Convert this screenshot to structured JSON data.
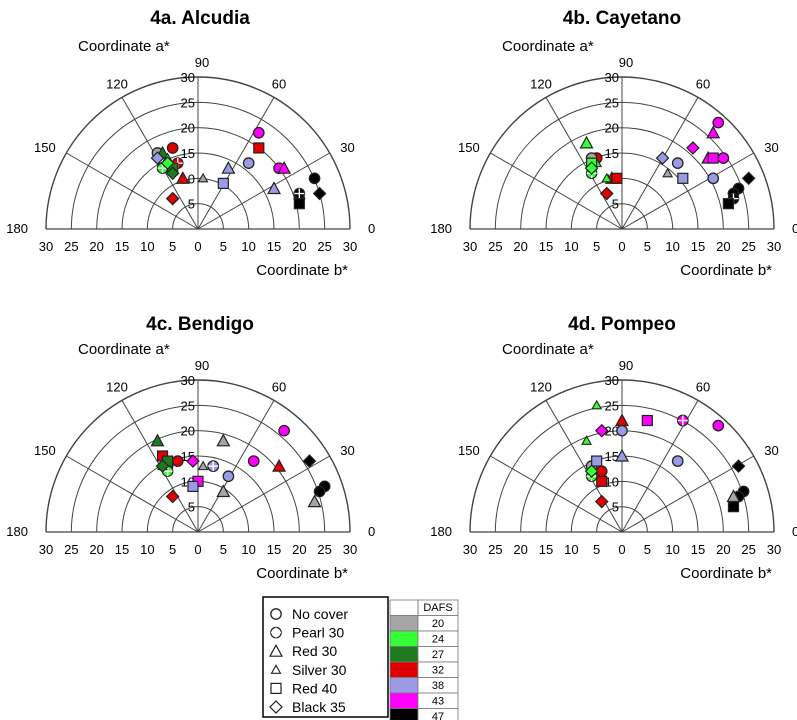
{
  "chart_data": [
    {
      "type": "scatter",
      "coordinate_system": "polar-quarter",
      "title": "4a. Alcudia",
      "ylabel": "Coordinate a*",
      "xlabel": "Coordinate b*",
      "radial_ticks": [
        "30",
        "25",
        "20",
        "15",
        "10",
        "5",
        "0",
        "5",
        "10",
        "15",
        "20",
        "25",
        "30"
      ],
      "vertical_ticks": [
        "30",
        "25",
        "20",
        "15",
        "10",
        "5"
      ],
      "angle_ticks": [
        "180",
        "150",
        "120",
        "90",
        "60",
        "30",
        "0"
      ],
      "points": [
        {
          "x": 23,
          "y": 10,
          "cover": "No cover",
          "dafs": "47"
        },
        {
          "x": 20,
          "y": 6,
          "cover": "No cover",
          "dafs": "47"
        },
        {
          "x": 16,
          "y": 12,
          "cover": "No cover",
          "dafs": "43"
        },
        {
          "x": 12,
          "y": 19,
          "cover": "No cover",
          "dafs": "43"
        },
        {
          "x": 10,
          "y": 13,
          "cover": "No cover",
          "dafs": "38"
        },
        {
          "x": -5,
          "y": 16,
          "cover": "No cover",
          "dafs": "32"
        },
        {
          "x": -8,
          "y": 15,
          "cover": "No cover",
          "dafs": "20"
        },
        {
          "x": 20,
          "y": 7,
          "cover": "Pearl 30",
          "dafs": "47"
        },
        {
          "x": -4,
          "y": 13,
          "cover": "Pearl 30",
          "dafs": "32"
        },
        {
          "x": -7,
          "y": 12,
          "cover": "Pearl 30",
          "dafs": "24"
        },
        {
          "x": 17,
          "y": 12,
          "cover": "Red 30",
          "dafs": "43"
        },
        {
          "x": 15,
          "y": 8,
          "cover": "Red 30",
          "dafs": "38"
        },
        {
          "x": 6,
          "y": 12,
          "cover": "Red 30",
          "dafs": "38"
        },
        {
          "x": -3,
          "y": 10,
          "cover": "Red 30",
          "dafs": "32"
        },
        {
          "x": -7,
          "y": 15,
          "cover": "Red 30",
          "dafs": "27"
        },
        {
          "x": 1,
          "y": 10,
          "cover": "Silver 30",
          "dafs": "20"
        },
        {
          "x": -6,
          "y": 14,
          "cover": "Silver 30",
          "dafs": "24"
        },
        {
          "x": 20,
          "y": 5,
          "cover": "Red 40",
          "dafs": "47"
        },
        {
          "x": 12,
          "y": 16,
          "cover": "Red 40",
          "dafs": "32"
        },
        {
          "x": 5,
          "y": 9,
          "cover": "Red 40",
          "dafs": "38"
        },
        {
          "x": -5,
          "y": 12,
          "cover": "Red 40",
          "dafs": "27"
        },
        {
          "x": 24,
          "y": 7,
          "cover": "Black 35",
          "dafs": "47"
        },
        {
          "x": -5,
          "y": 6,
          "cover": "Black 35",
          "dafs": "32"
        },
        {
          "x": -5,
          "y": 11,
          "cover": "Black 35",
          "dafs": "27"
        },
        {
          "x": -6,
          "y": 13,
          "cover": "Black 35",
          "dafs": "24"
        },
        {
          "x": -8,
          "y": 14,
          "cover": "Black 35",
          "dafs": "38"
        }
      ]
    },
    {
      "type": "scatter",
      "coordinate_system": "polar-quarter",
      "title": "4b. Cayetano",
      "ylabel": "Coordinate a*",
      "xlabel": "Coordinate b*",
      "radial_ticks": [
        "30",
        "25",
        "20",
        "15",
        "10",
        "5",
        "0",
        "5",
        "10",
        "15",
        "20",
        "25",
        "30"
      ],
      "vertical_ticks": [
        "30",
        "25",
        "20",
        "15",
        "10",
        "5"
      ],
      "angle_ticks": [
        "180",
        "150",
        "120",
        "90",
        "60",
        "30",
        "0"
      ],
      "points": [
        {
          "x": 23,
          "y": 8,
          "cover": "No cover",
          "dafs": "47"
        },
        {
          "x": 22,
          "y": 7,
          "cover": "No cover",
          "dafs": "47"
        },
        {
          "x": 18,
          "y": 10,
          "cover": "No cover",
          "dafs": "38"
        },
        {
          "x": 20,
          "y": 14,
          "cover": "No cover",
          "dafs": "43"
        },
        {
          "x": 19,
          "y": 21,
          "cover": "No cover",
          "dafs": "43"
        },
        {
          "x": 11,
          "y": 13,
          "cover": "No cover",
          "dafs": "38"
        },
        {
          "x": -5,
          "y": 14,
          "cover": "No cover",
          "dafs": "32"
        },
        {
          "x": -6,
          "y": 14,
          "cover": "No cover",
          "dafs": "20"
        },
        {
          "x": 22,
          "y": 6,
          "cover": "Pearl 30",
          "dafs": "47"
        },
        {
          "x": -6,
          "y": 11,
          "cover": "Pearl 30",
          "dafs": "24"
        },
        {
          "x": 18,
          "y": 19,
          "cover": "Red 30",
          "dafs": "43"
        },
        {
          "x": 17,
          "y": 14,
          "cover": "Red 30",
          "dafs": "43"
        },
        {
          "x": -2,
          "y": 10,
          "cover": "Red 30",
          "dafs": "32"
        },
        {
          "x": -7,
          "y": 17,
          "cover": "Red 30",
          "dafs": "24"
        },
        {
          "x": 9,
          "y": 11,
          "cover": "Silver 30",
          "dafs": "20"
        },
        {
          "x": -5,
          "y": 13,
          "cover": "Silver 30",
          "dafs": "24"
        },
        {
          "x": -3,
          "y": 10,
          "cover": "Silver 30",
          "dafs": "24"
        },
        {
          "x": 21,
          "y": 5,
          "cover": "Red 40",
          "dafs": "47"
        },
        {
          "x": 18,
          "y": 14,
          "cover": "Red 40",
          "dafs": "43"
        },
        {
          "x": 12,
          "y": 10,
          "cover": "Red 40",
          "dafs": "38"
        },
        {
          "x": -6,
          "y": 13,
          "cover": "Red 40",
          "dafs": "24"
        },
        {
          "x": -1,
          "y": 10,
          "cover": "Red 40",
          "dafs": "32"
        },
        {
          "x": 25,
          "y": 10,
          "cover": "Black 35",
          "dafs": "47"
        },
        {
          "x": 14,
          "y": 16,
          "cover": "Black 35",
          "dafs": "43"
        },
        {
          "x": 8,
          "y": 14,
          "cover": "Black 35",
          "dafs": "38"
        },
        {
          "x": -3,
          "y": 7,
          "cover": "Black 35",
          "dafs": "32"
        },
        {
          "x": -6,
          "y": 12,
          "cover": "Black 35",
          "dafs": "24"
        }
      ]
    },
    {
      "type": "scatter",
      "coordinate_system": "polar-quarter",
      "title": "4c. Bendigo",
      "ylabel": "Coordinate a*",
      "xlabel": "Coordinate b*",
      "radial_ticks": [
        "30",
        "25",
        "20",
        "15",
        "10",
        "5",
        "0",
        "5",
        "10",
        "15",
        "20",
        "25",
        "30"
      ],
      "vertical_ticks": [
        "30",
        "25",
        "20",
        "15",
        "10",
        "5"
      ],
      "angle_ticks": [
        "180",
        "150",
        "120",
        "90",
        "60",
        "30",
        "0"
      ],
      "points": [
        {
          "x": 25,
          "y": 9,
          "cover": "No cover",
          "dafs": "47"
        },
        {
          "x": 24,
          "y": 8,
          "cover": "No cover",
          "dafs": "47"
        },
        {
          "x": 17,
          "y": 20,
          "cover": "No cover",
          "dafs": "43"
        },
        {
          "x": 11,
          "y": 14,
          "cover": "No cover",
          "dafs": "43"
        },
        {
          "x": 3,
          "y": 13,
          "cover": "No cover",
          "dafs": "38"
        },
        {
          "x": 6,
          "y": 11,
          "cover": "No cover",
          "dafs": "38"
        },
        {
          "x": -6,
          "y": 13,
          "cover": "No cover",
          "dafs": "20"
        },
        {
          "x": -4,
          "y": 14,
          "cover": "No cover",
          "dafs": "32"
        },
        {
          "x": 3,
          "y": 13,
          "cover": "Pearl 30",
          "dafs": "38"
        },
        {
          "x": -6,
          "y": 12,
          "cover": "Pearl 30",
          "dafs": "24"
        },
        {
          "x": 23,
          "y": 6,
          "cover": "Red 30",
          "dafs": "20"
        },
        {
          "x": 16,
          "y": 13,
          "cover": "Red 30",
          "dafs": "32"
        },
        {
          "x": 5,
          "y": 18,
          "cover": "Red 30",
          "dafs": "20"
        },
        {
          "x": 5,
          "y": 8,
          "cover": "Red 30",
          "dafs": "20"
        },
        {
          "x": -8,
          "y": 18,
          "cover": "Red 30",
          "dafs": "27"
        },
        {
          "x": 1,
          "y": 13,
          "cover": "Silver 30",
          "dafs": "20"
        },
        {
          "x": -7,
          "y": 13,
          "cover": "Silver 30",
          "dafs": "24"
        },
        {
          "x": -7,
          "y": 15,
          "cover": "Red 40",
          "dafs": "32"
        },
        {
          "x": 0,
          "y": 10,
          "cover": "Red 40",
          "dafs": "43"
        },
        {
          "x": -1,
          "y": 9,
          "cover": "Red 40",
          "dafs": "38"
        },
        {
          "x": -6,
          "y": 14,
          "cover": "Red 40",
          "dafs": "27"
        },
        {
          "x": 22,
          "y": 14,
          "cover": "Black 35",
          "dafs": "47"
        },
        {
          "x": -1,
          "y": 14,
          "cover": "Black 35",
          "dafs": "43"
        },
        {
          "x": -5,
          "y": 7,
          "cover": "Black 35",
          "dafs": "32"
        },
        {
          "x": -7,
          "y": 13,
          "cover": "Black 35",
          "dafs": "27"
        }
      ]
    },
    {
      "type": "scatter",
      "coordinate_system": "polar-quarter",
      "title": "4d. Pompeo",
      "ylabel": "Coordinate a*",
      "xlabel": "Coordinate b*",
      "radial_ticks": [
        "30",
        "25",
        "20",
        "15",
        "10",
        "5",
        "0",
        "5",
        "10",
        "15",
        "20",
        "25",
        "30"
      ],
      "vertical_ticks": [
        "30",
        "25",
        "20",
        "15",
        "10",
        "5"
      ],
      "angle_ticks": [
        "180",
        "150",
        "120",
        "90",
        "60",
        "30",
        "0"
      ],
      "points": [
        {
          "x": 24,
          "y": 8,
          "cover": "No cover",
          "dafs": "47"
        },
        {
          "x": 23,
          "y": 7,
          "cover": "No cover",
          "dafs": "47"
        },
        {
          "x": 19,
          "y": 21,
          "cover": "No cover",
          "dafs": "43"
        },
        {
          "x": 12,
          "y": 22,
          "cover": "No cover",
          "dafs": "43"
        },
        {
          "x": 11,
          "y": 14,
          "cover": "No cover",
          "dafs": "38"
        },
        {
          "x": 0,
          "y": 20,
          "cover": "No cover",
          "dafs": "38"
        },
        {
          "x": -6,
          "y": 13,
          "cover": "No cover",
          "dafs": "20"
        },
        {
          "x": -4,
          "y": 12,
          "cover": "No cover",
          "dafs": "32"
        },
        {
          "x": 12,
          "y": 22,
          "cover": "Pearl 30",
          "dafs": "43"
        },
        {
          "x": -6,
          "y": 11,
          "cover": "Pearl 30",
          "dafs": "24"
        },
        {
          "x": 22,
          "y": 7,
          "cover": "Red 30",
          "dafs": "20"
        },
        {
          "x": 0,
          "y": 22,
          "cover": "Red 30",
          "dafs": "32"
        },
        {
          "x": 0,
          "y": 15,
          "cover": "Red 30",
          "dafs": "38"
        },
        {
          "x": -7,
          "y": 18,
          "cover": "Silver 30",
          "dafs": "24"
        },
        {
          "x": -5,
          "y": 25,
          "cover": "Silver 30",
          "dafs": "24"
        },
        {
          "x": 22,
          "y": 5,
          "cover": "Red 40",
          "dafs": "47"
        },
        {
          "x": 5,
          "y": 22,
          "cover": "Red 40",
          "dafs": "43"
        },
        {
          "x": -4,
          "y": 10,
          "cover": "Red 40",
          "dafs": "32"
        },
        {
          "x": -5,
          "y": 14,
          "cover": "Red 40",
          "dafs": "38"
        },
        {
          "x": 23,
          "y": 13,
          "cover": "Black 35",
          "dafs": "47"
        },
        {
          "x": -4,
          "y": 20,
          "cover": "Black 35",
          "dafs": "43"
        },
        {
          "x": -4,
          "y": 6,
          "cover": "Black 35",
          "dafs": "32"
        },
        {
          "x": -6,
          "y": 12,
          "cover": "Black 35",
          "dafs": "24"
        }
      ]
    }
  ],
  "legend": {
    "covers": [
      {
        "label": "No cover",
        "marker": "circle"
      },
      {
        "label": "Pearl 30",
        "marker": "cross"
      },
      {
        "label": "Red 30",
        "marker": "triangle"
      },
      {
        "label": "Silver 30",
        "marker": "small-triangle"
      },
      {
        "label": "Red 40",
        "marker": "square"
      },
      {
        "label": "Black 35",
        "marker": "diamond"
      }
    ],
    "dafs_header": "DAFS",
    "dafs": [
      {
        "label": "20",
        "color": "#a6a6a6"
      },
      {
        "label": "24",
        "color": "#33ff33"
      },
      {
        "label": "27",
        "color": "#1e7a1e"
      },
      {
        "label": "32",
        "color": "#e00000"
      },
      {
        "label": "38",
        "color": "#9a9ae6"
      },
      {
        "label": "43",
        "color": "#ff00ff"
      },
      {
        "label": "47",
        "color": "#000000"
      }
    ]
  }
}
